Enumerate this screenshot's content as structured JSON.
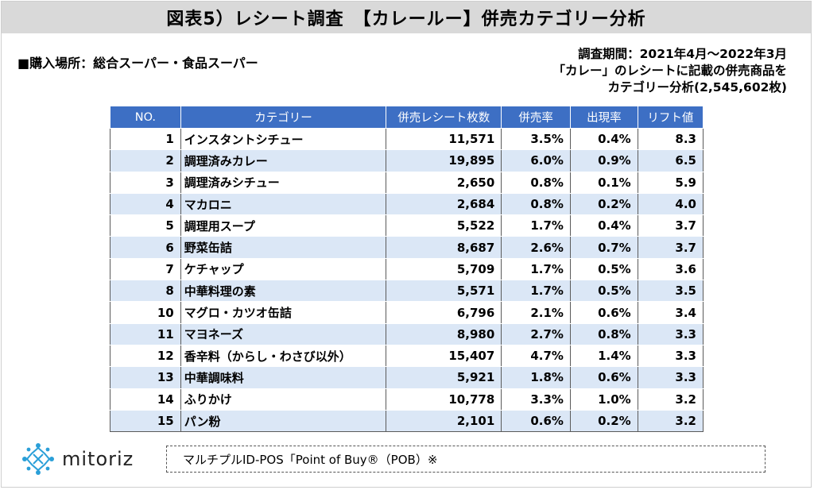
{
  "title": "図表5）レシート調査　【カレールー】併売カテゴリー分析",
  "purchase_location": "■購入場所：総合スーパー・食品スーパー",
  "note_lines": [
    "調査期間：2021年4月～2022年3月",
    "「カレー」のレシートに記載の併売商品を",
    "カテゴリー分析(2,545,602枚)"
  ],
  "table": {
    "headers": [
      "NO.",
      "カテゴリー",
      "併売レシート枚数",
      "併売率",
      "出現率",
      "リフト値"
    ],
    "rows": [
      {
        "no": "1",
        "category": "インスタントシチュー",
        "count": "11,571",
        "rate": "3.5%",
        "appearance": "0.4%",
        "lift": "8.3"
      },
      {
        "no": "2",
        "category": "調理済みカレー",
        "count": "19,895",
        "rate": "6.0%",
        "appearance": "0.9%",
        "lift": "6.5"
      },
      {
        "no": "3",
        "category": "調理済みシチュー",
        "count": "2,650",
        "rate": "0.8%",
        "appearance": "0.1%",
        "lift": "5.9"
      },
      {
        "no": "4",
        "category": "マカロニ",
        "count": "2,684",
        "rate": "0.8%",
        "appearance": "0.2%",
        "lift": "4.0"
      },
      {
        "no": "5",
        "category": "調理用スープ",
        "count": "5,522",
        "rate": "1.7%",
        "appearance": "0.4%",
        "lift": "3.7"
      },
      {
        "no": "6",
        "category": "野菜缶詰",
        "count": "8,687",
        "rate": "2.6%",
        "appearance": "0.7%",
        "lift": "3.7"
      },
      {
        "no": "7",
        "category": "ケチャップ",
        "count": "5,709",
        "rate": "1.7%",
        "appearance": "0.5%",
        "lift": "3.6"
      },
      {
        "no": "8",
        "category": "中華料理の素",
        "count": "5,571",
        "rate": "1.7%",
        "appearance": "0.5%",
        "lift": "3.5"
      },
      {
        "no": "10",
        "category": "マグロ・カツオ缶詰",
        "count": "6,796",
        "rate": "2.1%",
        "appearance": "0.6%",
        "lift": "3.4"
      },
      {
        "no": "11",
        "category": "マヨネーズ",
        "count": "8,980",
        "rate": "2.7%",
        "appearance": "0.8%",
        "lift": "3.3"
      },
      {
        "no": "12",
        "category": "香辛料（からし・わさび以外）",
        "count": "15,407",
        "rate": "4.7%",
        "appearance": "1.4%",
        "lift": "3.3"
      },
      {
        "no": "13",
        "category": "中華調味料",
        "count": "5,921",
        "rate": "1.8%",
        "appearance": "0.6%",
        "lift": "3.3"
      },
      {
        "no": "14",
        "category": "ふりかけ",
        "count": "10,778",
        "rate": "3.3%",
        "appearance": "1.0%",
        "lift": "3.2"
      },
      {
        "no": "15",
        "category": "パン粉",
        "count": "2,101",
        "rate": "0.6%",
        "appearance": "0.2%",
        "lift": "3.2"
      }
    ]
  },
  "logo": {
    "text": "mitoriz",
    "icon": "mitoriz-logo-icon",
    "color": "#2a9fd8"
  },
  "source": "マルチプルID-POS「Point of Buy®（POB）※",
  "colors": {
    "header_bg": "#3d6fc4",
    "stripe": "#dbe7f6",
    "title_bg": "#d9d9d9"
  }
}
